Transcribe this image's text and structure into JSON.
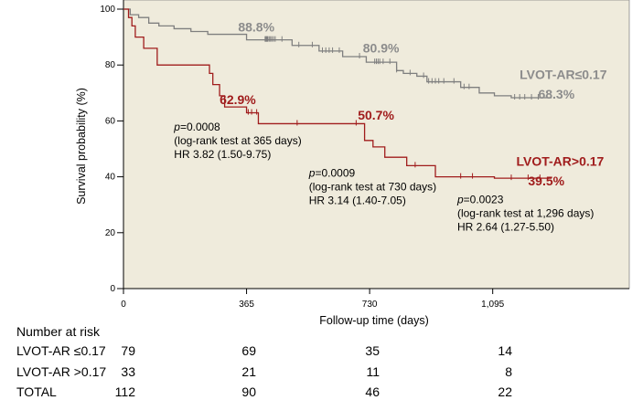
{
  "chart_data": {
    "type": "line",
    "subtype": "kaplan-meier",
    "xlabel": "Follow-up time (days)",
    "ylabel": "Survival probability (%)",
    "xlim": [
      0,
      1500
    ],
    "ylim": [
      0,
      100
    ],
    "xticks": [
      0,
      365,
      730,
      1095
    ],
    "xtick_labels": [
      "0",
      "365",
      "730",
      "1,095"
    ],
    "yticks": [
      0,
      20,
      40,
      60,
      80,
      100
    ],
    "ytick_labels": [
      "0",
      "20",
      "40",
      "60",
      "80",
      "100"
    ],
    "background": "#efebdc",
    "grid": false,
    "series": [
      {
        "name": "LVOT-AR≤0.17",
        "color": "#7f7f7f",
        "label_color": "#8c8c8c",
        "steps": [
          [
            0,
            100
          ],
          [
            20,
            98
          ],
          [
            45,
            97
          ],
          [
            75,
            95
          ],
          [
            105,
            94
          ],
          [
            150,
            93
          ],
          [
            200,
            92
          ],
          [
            250,
            91
          ],
          [
            365,
            89
          ],
          [
            500,
            87
          ],
          [
            580,
            85
          ],
          [
            650,
            83
          ],
          [
            720,
            81
          ],
          [
            810,
            78
          ],
          [
            830,
            77
          ],
          [
            870,
            76
          ],
          [
            900,
            74
          ],
          [
            1000,
            72
          ],
          [
            1055,
            70
          ],
          [
            1100,
            69
          ],
          [
            1150,
            68.3
          ],
          [
            1270,
            68.3
          ]
        ],
        "censor_x": [
          420,
          422,
          424,
          426,
          428,
          432,
          436,
          440,
          445,
          450,
          470,
          520,
          560,
          590,
          600,
          610,
          620,
          640,
          700,
          745,
          750,
          755,
          760,
          770,
          790,
          810,
          850,
          890,
          905,
          915,
          925,
          935,
          950,
          980,
          1010,
          1025,
          1160,
          1175,
          1190,
          1210,
          1230
        ],
        "annotations": [
          {
            "text": "88.8%",
            "x": 340,
            "y": 92
          },
          {
            "text": "80.9%",
            "x": 710,
            "y": 84.5
          },
          {
            "text": "LVOT-AR≤0.17",
            "x": 1175,
            "y": 75
          },
          {
            "text": "68.3%",
            "x": 1230,
            "y": 68
          }
        ]
      },
      {
        "name": "LVOT-AR>0.17",
        "color": "#a01c1c",
        "label_color": "#a01c1c",
        "steps": [
          [
            0,
            100
          ],
          [
            15,
            97
          ],
          [
            25,
            94
          ],
          [
            35,
            90
          ],
          [
            60,
            86
          ],
          [
            100,
            80
          ],
          [
            255,
            77
          ],
          [
            265,
            73
          ],
          [
            285,
            69
          ],
          [
            300,
            65
          ],
          [
            365,
            62.9
          ],
          [
            400,
            59
          ],
          [
            715,
            53
          ],
          [
            740,
            50.7
          ],
          [
            775,
            47
          ],
          [
            840,
            44
          ],
          [
            925,
            40
          ],
          [
            1100,
            39.5
          ],
          [
            1270,
            39.5
          ]
        ],
        "censor_x": [
          370,
          380,
          395,
          515,
          690,
          865,
          1000,
          1035,
          1150,
          1200,
          1235
        ],
        "annotations": [
          {
            "text": "62.9%",
            "x": 285,
            "y": 66
          },
          {
            "text": "50.7%",
            "x": 695,
            "y": 60.5
          },
          {
            "text": "LVOT-AR>0.17",
            "x": 1165,
            "y": 44
          },
          {
            "text": "39.5%",
            "x": 1200,
            "y": 37
          }
        ]
      }
    ],
    "stat_notes": [
      {
        "p": "p",
        "eq": "=0.0008",
        "line2": "(log-rank test at 365 days)",
        "line3": "HR 3.82 (1.50-9.75)",
        "x": 150,
        "y": 56.5
      },
      {
        "p": "p",
        "eq": "=0.0009",
        "line2": "(log-rank test at 730 days)",
        "line3": "HR 3.14 (1.40-7.05)",
        "x": 550,
        "y": 40
      },
      {
        "p": "p",
        "eq": "=0.0023",
        "line2": "(log-rank test at 1,296 days)",
        "line3": "HR 2.64 (1.27-5.50)",
        "x": 990,
        "y": 30.5
      }
    ]
  },
  "risk_table": {
    "title": "Number at risk",
    "rows": [
      {
        "label": "LVOT-AR ≤0.17",
        "values": [
          "79",
          "69",
          "35",
          "14"
        ]
      },
      {
        "label": "LVOT-AR >0.17",
        "values": [
          "33",
          "21",
          "11",
          "8"
        ]
      },
      {
        "label": "TOTAL",
        "values": [
          "112",
          "90",
          "46",
          "22"
        ]
      }
    ]
  }
}
